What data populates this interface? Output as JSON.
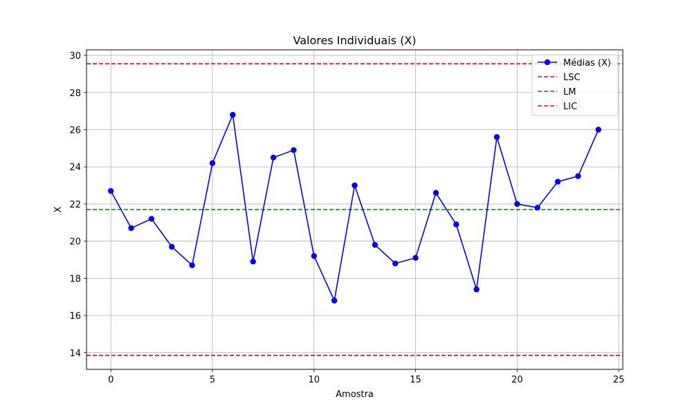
{
  "chart_data": {
    "type": "line",
    "title": "Valores Individuais (X)",
    "xlabel": "Amostra",
    "ylabel": "X",
    "xlim": [
      -1.2,
      25.2
    ],
    "ylim": [
      13.1,
      30.3
    ],
    "xticks": [
      0,
      5,
      10,
      15,
      20,
      25
    ],
    "yticks": [
      14,
      16,
      18,
      20,
      22,
      24,
      26,
      28,
      30
    ],
    "grid": true,
    "legend_position": "top-right",
    "series": [
      {
        "name": "Médias (X)",
        "color": "#0000ff",
        "marker": "circle",
        "x": [
          0,
          1,
          2,
          3,
          4,
          5,
          6,
          7,
          8,
          9,
          10,
          11,
          12,
          13,
          14,
          15,
          16,
          17,
          18,
          19,
          20,
          21,
          22,
          23,
          24
        ],
        "y": [
          22.7,
          20.7,
          21.2,
          19.7,
          18.7,
          24.2,
          26.8,
          18.9,
          24.5,
          24.9,
          19.2,
          16.8,
          23.0,
          19.8,
          18.8,
          19.1,
          22.6,
          20.9,
          17.4,
          25.6,
          22.0,
          21.8,
          23.2,
          23.5,
          26.0
        ]
      }
    ],
    "reference_lines": [
      {
        "name": "LSC",
        "y": 29.55,
        "color": "#ff0000",
        "style": "dashed"
      },
      {
        "name": "LM",
        "y": 21.7,
        "color": "#008000",
        "style": "dashed"
      },
      {
        "name": "LIC",
        "y": 13.85,
        "color": "#ff0000",
        "style": "dashed"
      }
    ]
  }
}
